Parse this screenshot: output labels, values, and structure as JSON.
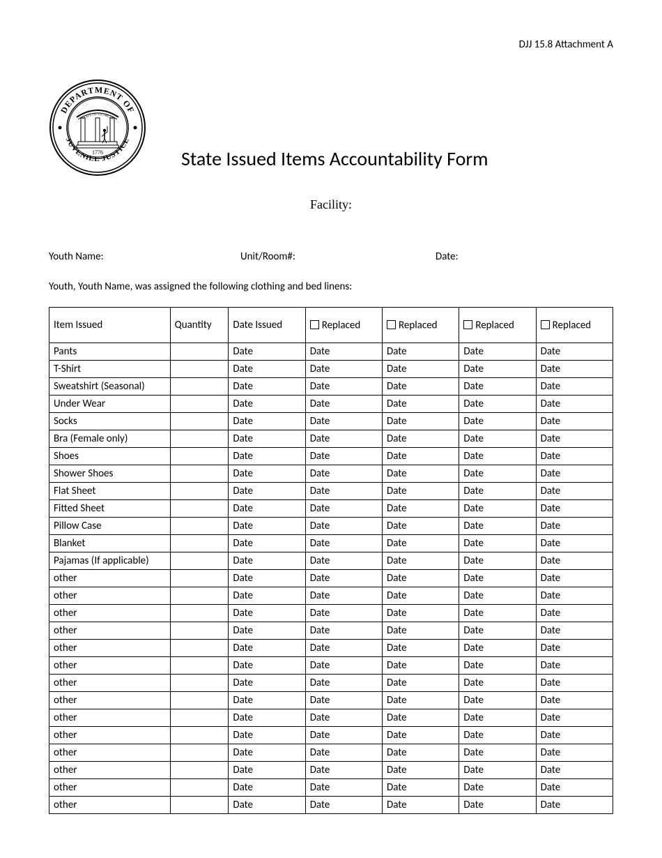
{
  "header_code": "DJJ 15.8 Attachment A",
  "title": "State Issued Items Accountability Form",
  "facility_label": "Facility:",
  "info": {
    "youth_label": "Youth Name:",
    "unit_label": "Unit/Room#:",
    "date_label": "Date:"
  },
  "assignment_text": "Youth, Youth Name, was assigned the following clothing and bed linens:",
  "table": {
    "headers": {
      "item": "Item Issued",
      "quantity": "Quantity",
      "date_issued": "Date  Issued",
      "replaced": "Replaced"
    },
    "cell_placeholder": "Date",
    "items": [
      "Pants",
      "T-Shirt",
      "Sweatshirt (Seasonal)",
      "Under Wear",
      "Socks",
      "Bra (Female only)",
      "Shoes",
      "Shower Shoes",
      "Flat Sheet",
      "Fitted Sheet",
      "Pillow Case",
      "Blanket",
      "Pajamas (If applicable)",
      "other",
      "other",
      "other",
      "other",
      "other",
      "other",
      "other",
      "other",
      "other",
      "other",
      "other",
      "other",
      "other",
      "other"
    ]
  },
  "seal": {
    "outer_ring_color": "#000000",
    "inner_bg": "#ffffff",
    "text_top": "DEPARTMENT OF",
    "text_bottom": "JUVENILE JUSTICE",
    "year": "1776",
    "state_text": "GEORGIA"
  }
}
